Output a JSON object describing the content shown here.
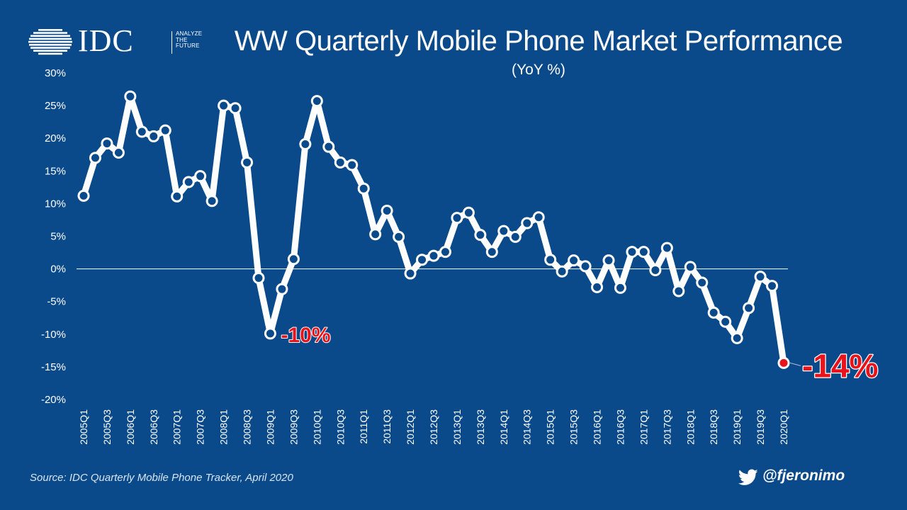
{
  "brand": {
    "logo_text": "IDC",
    "tagline": "ANALYZE\nTHE\nFUTURE"
  },
  "footer": {
    "source": "Source:  IDC Quarterly Mobile Phone Tracker, April 2020",
    "handle": "@fjeronimo",
    "handle_icon": "twitter-bird-icon"
  },
  "colors": {
    "background": "#0a4a8a",
    "line": "#ffffff",
    "highlight": "#e8141c"
  },
  "chart_data": {
    "type": "line",
    "title": "WW Quarterly Mobile Phone Market Performance",
    "subtitle": "(YoY %)",
    "xlabel": "",
    "ylabel": "",
    "ylim": [
      -20,
      30
    ],
    "yticks": [
      30,
      25,
      20,
      15,
      10,
      5,
      0,
      -5,
      -10,
      -15,
      -20
    ],
    "ytick_labels": [
      "30%",
      "25%",
      "20%",
      "15%",
      "10%",
      "5%",
      "0%",
      "-5%",
      "-10%",
      "-15%",
      "-20%"
    ],
    "grid": false,
    "x": [
      "2005Q1",
      "2005Q2",
      "2005Q3",
      "2005Q4",
      "2006Q1",
      "2006Q2",
      "2006Q3",
      "2006Q4",
      "2007Q1",
      "2007Q2",
      "2007Q3",
      "2007Q4",
      "2008Q1",
      "2008Q2",
      "2008Q3",
      "2008Q4",
      "2009Q1",
      "2009Q2",
      "2009Q3",
      "2009Q4",
      "2010Q1",
      "2010Q2",
      "2010Q3",
      "2010Q4",
      "2011Q1",
      "2011Q2",
      "2011Q3",
      "2011Q4",
      "2012Q1",
      "2012Q2",
      "2012Q3",
      "2012Q4",
      "2013Q1",
      "2013Q2",
      "2013Q3",
      "2013Q4",
      "2014Q1",
      "2014Q2",
      "2014Q3",
      "2014Q4",
      "2015Q1",
      "2015Q2",
      "2015Q3",
      "2015Q4",
      "2016Q1",
      "2016Q2",
      "2016Q3",
      "2016Q4",
      "2017Q1",
      "2017Q2",
      "2017Q3",
      "2017Q4",
      "2018Q1",
      "2018Q2",
      "2018Q3",
      "2018Q4",
      "2019Q1",
      "2019Q2",
      "2019Q3",
      "2019Q4",
      "2020Q1"
    ],
    "x_tick_labels": [
      "2005Q1",
      "2005Q3",
      "2006Q1",
      "2006Q3",
      "2007Q1",
      "2007Q3",
      "2008Q1",
      "2008Q3",
      "2009Q1",
      "2009Q3",
      "2010Q1",
      "2010Q3",
      "2011Q1",
      "2011Q3",
      "2012Q1",
      "2012Q3",
      "2013Q1",
      "2013Q3",
      "2014Q1",
      "2014Q3",
      "2015Q1",
      "2015Q3",
      "2016Q1",
      "2016Q3",
      "2017Q1",
      "2017Q3",
      "2018Q1",
      "2018Q3",
      "2019Q1",
      "2019Q3",
      "2020Q1"
    ],
    "series": [
      {
        "values": [
          11.2,
          17.0,
          19.2,
          17.8,
          26.4,
          21.0,
          20.3,
          21.2,
          11.1,
          13.3,
          14.2,
          10.4,
          25.0,
          24.6,
          16.3,
          -1.4,
          -9.9,
          -3.1,
          1.5,
          19.1,
          25.7,
          18.7,
          16.3,
          15.9,
          12.3,
          5.3,
          8.9,
          4.9,
          -0.7,
          1.4,
          2.0,
          2.6,
          7.8,
          8.6,
          5.2,
          2.6,
          5.8,
          4.9,
          7.0,
          7.9,
          1.4,
          -0.4,
          1.3,
          0.4,
          -2.8,
          1.3,
          -2.9,
          2.6,
          2.6,
          -0.2,
          3.2,
          -3.4,
          0.3,
          -2.1,
          -6.7,
          -8.1,
          -10.6,
          -6.0,
          -1.2,
          -2.6,
          -14.4
        ]
      }
    ],
    "annotations": [
      {
        "x": "2009Q1",
        "y": -9.9,
        "label": "-10%"
      },
      {
        "x": "2020Q1",
        "y": -14.4,
        "label": "-14%"
      }
    ]
  }
}
